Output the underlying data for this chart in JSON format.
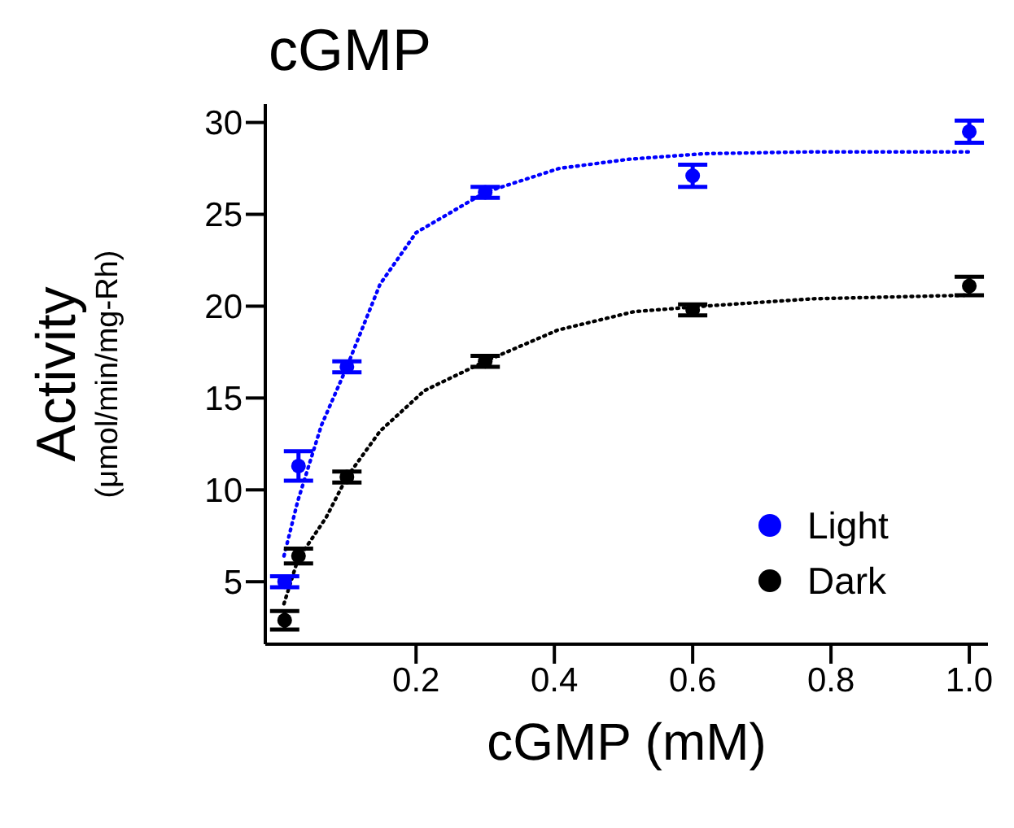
{
  "chart_data": {
    "type": "scatter",
    "title": "cGMP",
    "xlabel": "cGMP (mM)",
    "ylabel": "Activity (μmol/min/mg-Rh)",
    "xlim": [
      -0.018,
      1.027
    ],
    "xticks": [
      0.2,
      0.4,
      0.6,
      0.8,
      {
        "value": 1,
        "label": "1.0"
      }
    ],
    "ylim": [
      1.6,
      31
    ],
    "yticks": [
      5,
      10,
      15,
      20,
      25,
      30
    ],
    "marker": "circle",
    "legend": "bottom right",
    "grid": false,
    "x": [
      0.01,
      0.03,
      0.1,
      0.3,
      0.6,
      1.0
    ],
    "series": [
      {
        "name": "Light",
        "color": "#0000ff",
        "values": [
          5.0,
          11.3,
          16.7,
          26.2,
          27.1,
          29.5
        ],
        "errors": [
          0.3,
          0.8,
          0.3,
          0.3,
          0.6,
          0.6
        ]
      },
      {
        "name": "Dark",
        "color": "#000000",
        "values": [
          2.9,
          6.4,
          10.7,
          17.0,
          19.8,
          21.1
        ],
        "errors": [
          0.5,
          0.4,
          0.3,
          0.3,
          0.3,
          0.5
        ]
      },
      {
        "type": "line",
        "color": "#0000ff",
        "marker": "none",
        "line_style": "dotted",
        "x": [
          0.009,
          0.029,
          0.063,
          0.1,
          0.148,
          0.2,
          0.3,
          0.407,
          0.508,
          0.616,
          0.773,
          1.0
        ],
        "values": [
          6.4,
          9.4,
          13.5,
          16.7,
          21.2,
          24.0,
          26.2,
          27.5,
          28.0,
          28.3,
          28.4,
          28.4
        ]
      },
      {
        "type": "line",
        "color": "#000000",
        "marker": "none",
        "line_style": "dotted",
        "x": [
          0.009,
          0.029,
          0.07,
          0.1,
          0.148,
          0.212,
          0.3,
          0.405,
          0.515,
          0.616,
          0.773,
          1.0
        ],
        "values": [
          3.8,
          6.2,
          8.5,
          10.7,
          13.2,
          15.4,
          17.0,
          18.7,
          19.7,
          20.0,
          20.4,
          20.6
        ]
      }
    ]
  }
}
